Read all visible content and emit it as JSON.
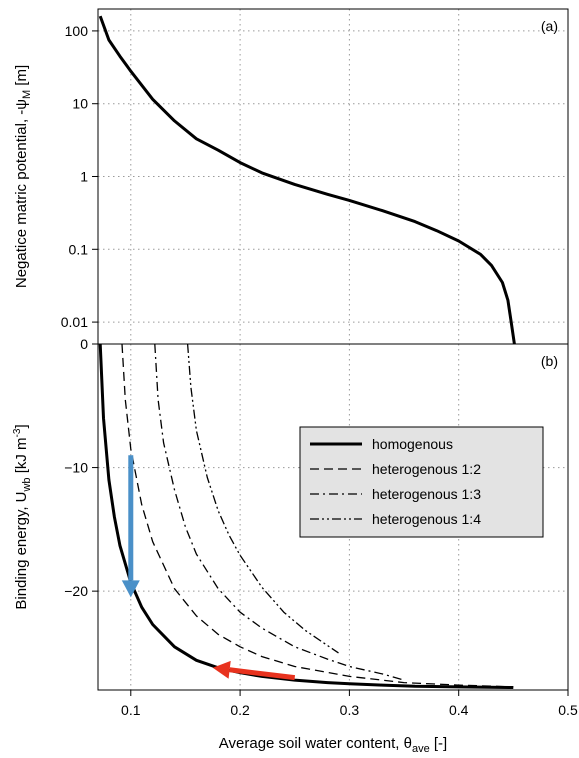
{
  "chart_data": [
    {
      "type": "line",
      "panel_label": "(a)",
      "ylabel": "Negatice matric potential, -ψM [m]",
      "ylabel_parts": {
        "main": "Negatice matric potential, -ψ",
        "sub": "M",
        "tail": " [m]"
      },
      "yscale": "log",
      "xlim": [
        0.07,
        0.5
      ],
      "ylim": [
        0.005,
        200
      ],
      "yticks": [
        100,
        10,
        1,
        0.1,
        0.01
      ],
      "ytick_labels": [
        "100",
        "10",
        "1",
        "0.1",
        "0.01"
      ],
      "grid": true,
      "series": [
        {
          "x": [
            0.072,
            0.08,
            0.09,
            0.1,
            0.12,
            0.14,
            0.16,
            0.18,
            0.2,
            0.22,
            0.25,
            0.28,
            0.3,
            0.33,
            0.36,
            0.38,
            0.4,
            0.42,
            0.43,
            0.44,
            0.445,
            0.448,
            0.451
          ],
          "y": [
            160,
            75,
            45,
            28,
            11.5,
            5.8,
            3.3,
            2.3,
            1.55,
            1.12,
            0.78,
            0.57,
            0.47,
            0.34,
            0.24,
            0.18,
            0.13,
            0.085,
            0.06,
            0.035,
            0.02,
            0.01,
            0.005
          ]
        }
      ]
    },
    {
      "type": "line",
      "panel_label": "(b)",
      "xlabel": "Average soil water content, θave [-]",
      "xlabel_parts": {
        "main": "Average soil water content, θ",
        "sub": "ave",
        "tail": " [-]"
      },
      "ylabel": "Binding energy, Uwb [kJ m-3]",
      "ylabel_parts": {
        "main": "Binding energy, U",
        "sub": "wb",
        "mid": " [kJ m",
        "sup": "-3",
        "tail": "]"
      },
      "xlim": [
        0.07,
        0.5
      ],
      "ylim": [
        -28,
        0
      ],
      "xticks": [
        0.1,
        0.2,
        0.3,
        0.4,
        0.5
      ],
      "xtick_labels": [
        "0.1",
        "0.2",
        "0.3",
        "0.4",
        "0.5"
      ],
      "yticks": [
        0,
        -10,
        -20
      ],
      "ytick_labels": [
        "0",
        "−10",
        "−20"
      ],
      "grid": true,
      "legend_position": "right",
      "series": [
        {
          "name": "homogenous",
          "style": "solid",
          "x": [
            0.072,
            0.075,
            0.08,
            0.085,
            0.09,
            0.1,
            0.11,
            0.12,
            0.14,
            0.16,
            0.18,
            0.2,
            0.22,
            0.25,
            0.28,
            0.3,
            0.33,
            0.36,
            0.4,
            0.45
          ],
          "y": [
            0,
            -6,
            -11,
            -14,
            -16.3,
            -19.3,
            -21.3,
            -22.7,
            -24.5,
            -25.6,
            -26.2,
            -26.6,
            -26.9,
            -27.2,
            -27.4,
            -27.5,
            -27.6,
            -27.7,
            -27.75,
            -27.8
          ]
        },
        {
          "name": "heterogenous 1:2",
          "style": "dashed",
          "x": [
            0.092,
            0.095,
            0.1,
            0.11,
            0.12,
            0.14,
            0.16,
            0.18,
            0.2,
            0.22,
            0.25,
            0.3,
            0.35,
            0.4,
            0.45
          ],
          "y": [
            0,
            -4.5,
            -8.5,
            -13,
            -16,
            -19.8,
            -22,
            -23.5,
            -24.5,
            -25.3,
            -26.1,
            -26.9,
            -27.4,
            -27.6,
            -27.75
          ]
        },
        {
          "name": "heterogenous 1:3",
          "style": "dashdot",
          "x": [
            0.122,
            0.125,
            0.13,
            0.14,
            0.15,
            0.16,
            0.18,
            0.2,
            0.22,
            0.25,
            0.28,
            0.3,
            0.33,
            0.35
          ],
          "y": [
            0,
            -4.5,
            -8,
            -11.8,
            -14.8,
            -17,
            -19.8,
            -21.7,
            -23,
            -24.5,
            -25.5,
            -26.1,
            -26.7,
            -27.2
          ]
        },
        {
          "name": "heterogenous 1:4",
          "style": "dashdotdot",
          "x": [
            0.152,
            0.155,
            0.16,
            0.17,
            0.18,
            0.19,
            0.2,
            0.22,
            0.24,
            0.26,
            0.28,
            0.29
          ],
          "y": [
            0,
            -3.5,
            -7,
            -10.8,
            -13.5,
            -15.5,
            -17.1,
            -19.7,
            -21.7,
            -23.2,
            -24.4,
            -25
          ]
        }
      ],
      "annotations": [
        {
          "kind": "arrow",
          "color": "#4a90c8",
          "from": [
            0.1,
            -9
          ],
          "to": [
            0.1,
            -20.5
          ]
        },
        {
          "kind": "arrow",
          "color": "#e8321e",
          "from": [
            0.25,
            -27.0
          ],
          "to": [
            0.175,
            -26.2
          ]
        }
      ]
    }
  ]
}
